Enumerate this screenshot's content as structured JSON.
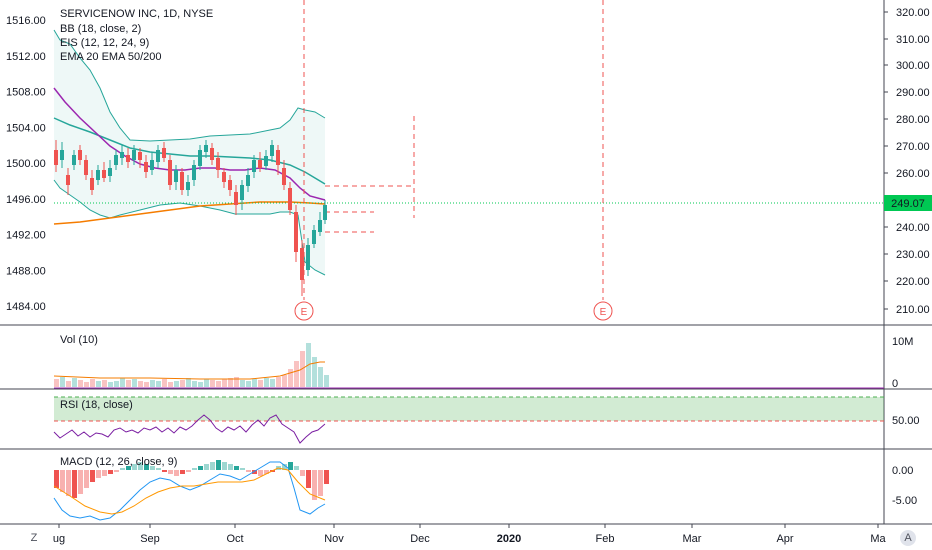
{
  "legend": {
    "symbol": "SERVICENOW INC, 1D, NYSE",
    "bb": "BB (18, close, 2)",
    "eis": "EIS (12, 12, 24, 9)",
    "ema": "EMA 20 EMA 50/200"
  },
  "left_scale": [
    "1516.00",
    "1512.00",
    "1508.00",
    "1504.00",
    "1500.00",
    "1496.00",
    "1492.00",
    "1488.00",
    "1484.00"
  ],
  "right_scale": [
    "320.00",
    "310.00",
    "300.00",
    "290.00",
    "280.00",
    "270.00",
    "260.00",
    "249.07",
    "240.00",
    "230.00",
    "220.00",
    "210.00"
  ],
  "last_price": "249.07",
  "earnings_marker": "E",
  "volume": {
    "label": "Vol (10)",
    "scale": [
      "10M",
      "0"
    ]
  },
  "rsi": {
    "label": "RSI (18, close)",
    "scale": [
      "50.00"
    ]
  },
  "macd": {
    "label": "MACD (12, 26, close, 9)",
    "scale": [
      "0.00",
      "-5.00"
    ]
  },
  "time_axis": [
    "ug",
    "Sep",
    "Oct",
    "Nov",
    "Dec",
    "2020",
    "Feb",
    "Mar",
    "Apr",
    "Ma"
  ],
  "corner": {
    "left": "Z",
    "right": "A"
  },
  "colors": {
    "up": "#26a69a",
    "down": "#ef5350",
    "ema20": "#9c27b0",
    "ema50": "#26a69a",
    "ema200": "#f57c00",
    "bb": "#26a69a",
    "rsi": "#7b1fa2",
    "macd": "#2196f3",
    "signal": "#ff9800",
    "price_line": "#00c853",
    "earnings": "#ef5350"
  }
}
